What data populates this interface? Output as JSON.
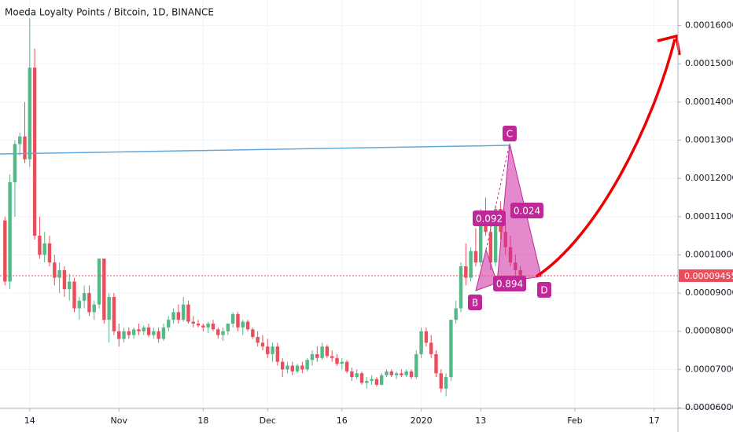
{
  "chart_data": {
    "type": "candlestick",
    "title": "Moeda Loyalty Points / Bitcoin, 1D, BINANCE",
    "up_color": "#53b987",
    "down_color": "#eb4d5c",
    "x": [
      -5,
      -4,
      -3,
      -2,
      -1,
      0,
      1,
      2,
      3,
      4,
      5,
      6,
      7,
      8,
      9,
      10,
      11,
      12,
      13,
      14,
      15,
      16,
      17,
      18,
      19,
      20,
      21,
      22,
      23,
      24,
      25,
      26,
      27,
      28,
      29,
      30,
      31,
      32,
      33,
      34,
      35,
      36,
      37,
      38,
      39,
      40,
      41,
      42,
      43,
      44,
      45,
      46,
      47,
      48,
      49,
      50,
      51,
      52,
      53,
      54,
      55,
      56,
      57,
      58,
      59,
      60,
      61,
      62,
      63,
      64,
      65,
      66,
      67,
      68,
      69,
      70,
      71,
      72,
      73,
      74,
      75,
      76,
      77,
      78,
      79,
      80,
      81,
      82,
      83,
      84,
      85,
      86,
      87,
      88,
      89,
      90,
      91,
      92,
      93,
      94,
      95,
      96,
      97,
      98,
      99
    ],
    "open": [
      0.000109,
      9.3e-05,
      0.000119,
      0.000129,
      0.000131,
      0.000125,
      0.000149,
      0.000105,
      0.0001,
      0.000103,
      9.8e-05,
      9.4e-05,
      9.6e-05,
      9.1e-05,
      9.3e-05,
      8.6e-05,
      8.8e-05,
      9e-05,
      8.5e-05,
      8.7e-05,
      9.9e-05,
      8.3e-05,
      8.9e-05,
      8e-05,
      7.8e-05,
      8e-05,
      7.9e-05,
      8.05e-05,
      8e-05,
      8.1e-05,
      7.9e-05,
      8e-05,
      7.8e-05,
      8.1e-05,
      8.3e-05,
      8.5e-05,
      8.3e-05,
      8.7e-05,
      8.25e-05,
      8.2e-05,
      8.15e-05,
      8.1e-05,
      8.2e-05,
      8.05e-05,
      7.9e-05,
      8e-05,
      8.2e-05,
      8.45e-05,
      8.1e-05,
      8.25e-05,
      8.05e-05,
      7.85e-05,
      7.7e-05,
      7.6e-05,
      7.4e-05,
      7.6e-05,
      7.2e-05,
      7e-05,
      7.1e-05,
      6.95e-05,
      7.1e-05,
      7e-05,
      7.25e-05,
      7.4e-05,
      7.3e-05,
      7.6e-05,
      7.35e-05,
      7.3e-05,
      7.15e-05,
      7.2e-05,
      6.95e-05,
      6.8e-05,
      6.9e-05,
      6.65e-05,
      6.7e-05,
      6.75e-05,
      6.6e-05,
      6.85e-05,
      6.95e-05,
      6.85e-05,
      6.9e-05,
      6.85e-05,
      6.95e-05,
      6.8e-05,
      7.4e-05,
      8e-05,
      7.7e-05,
      7.4e-05,
      6.9e-05,
      6.5e-05,
      6.8e-05,
      8.3e-05,
      8.6e-05,
      9.7e-05,
      9.4e-05,
      0.000101,
      9.8e-05,
      0.00011,
      0.000106,
      9.8e-05,
      0.000112,
      0.000106,
      0.000102,
      9.8e-05,
      9.6e-05
    ],
    "high": [
      0.00011,
      0.000121,
      0.00013,
      0.000132,
      0.00014,
      0.000162,
      0.000154,
      0.00011,
      0.000106,
      0.000105,
      0.0001,
      9.8e-05,
      9.7e-05,
      9.5e-05,
      9.4e-05,
      8.9e-05,
      9.2e-05,
      9.2e-05,
      8.8e-05,
      9.9e-05,
      9.9e-05,
      9e-05,
      9e-05,
      8.2e-05,
      8.1e-05,
      8.1e-05,
      8.1e-05,
      8.2e-05,
      8.15e-05,
      8.2e-05,
      8.1e-05,
      8.1e-05,
      8.2e-05,
      8.4e-05,
      8.6e-05,
      8.7e-05,
      8.9e-05,
      8.8e-05,
      8.4e-05,
      8.3e-05,
      8.2e-05,
      8.25e-05,
      8.3e-05,
      8.1e-05,
      8.1e-05,
      8.2e-05,
      8.5e-05,
      8.5e-05,
      8.3e-05,
      8.3e-05,
      8.1e-05,
      8e-05,
      7.9e-05,
      7.8e-05,
      7.7e-05,
      7.7e-05,
      7.3e-05,
      7.2e-05,
      7.2e-05,
      7.15e-05,
      7.2e-05,
      7.3e-05,
      7.5e-05,
      7.6e-05,
      7.7e-05,
      7.65e-05,
      7.5e-05,
      7.4e-05,
      7.3e-05,
      7.25e-05,
      7.05e-05,
      7e-05,
      6.95e-05,
      6.8e-05,
      6.85e-05,
      6.8e-05,
      6.9e-05,
      7e-05,
      7e-05,
      6.95e-05,
      7e-05,
      7e-05,
      7e-05,
      7.5e-05,
      8.1e-05,
      8.1e-05,
      7.9e-05,
      7.5e-05,
      7e-05,
      6.9e-05,
      8.3e-05,
      8.8e-05,
      9.8e-05,
      0.000103,
      0.000102,
      0.000107,
      0.000112,
      0.000115,
      0.000111,
      0.000113,
      0.000114,
      0.000108,
      0.000105,
      0.0001,
      9.7e-05
    ],
    "low": [
      9.2e-05,
      9.1e-05,
      0.00011,
      0.000126,
      0.000124,
      0.000123,
      0.000104,
      9.9e-05,
      9.8e-05,
      9.7e-05,
      9.2e-05,
      9e-05,
      8.9e-05,
      8.8e-05,
      8.5e-05,
      8.3e-05,
      8.6e-05,
      8.4e-05,
      8.3e-05,
      8.6e-05,
      8.2e-05,
      7.7e-05,
      7.9e-05,
      7.6e-05,
      7.7e-05,
      7.8e-05,
      7.8e-05,
      7.9e-05,
      7.9e-05,
      7.85e-05,
      7.8e-05,
      7.7e-05,
      7.75e-05,
      8e-05,
      8.2e-05,
      8.2e-05,
      8.25e-05,
      8.2e-05,
      8.1e-05,
      8.1e-05,
      8e-05,
      7.95e-05,
      8e-05,
      7.8e-05,
      7.75e-05,
      7.9e-05,
      8.1e-05,
      8e-05,
      7.9e-05,
      8e-05,
      7.8e-05,
      7.6e-05,
      7.5e-05,
      7.3e-05,
      7.2e-05,
      7.1e-05,
      6.8e-05,
      6.9e-05,
      6.85e-05,
      6.9e-05,
      6.9e-05,
      6.95e-05,
      7.1e-05,
      7.2e-05,
      7.25e-05,
      7.3e-05,
      7.2e-05,
      7.1e-05,
      7e-05,
      6.9e-05,
      6.7e-05,
      6.75e-05,
      6.6e-05,
      6.5e-05,
      6.6e-05,
      6.55e-05,
      6.58e-05,
      6.8e-05,
      6.8e-05,
      6.75e-05,
      6.8e-05,
      6.8e-05,
      6.75e-05,
      6.75e-05,
      7.3e-05,
      7.6e-05,
      7.3e-05,
      6.8e-05,
      6.4e-05,
      6.3e-05,
      6.7e-05,
      8.2e-05,
      8.5e-05,
      9.2e-05,
      9.3e-05,
      9.7e-05,
      9.7e-05,
      0.000105,
      9.6e-05,
      9.7e-05,
      0.000104,
      0.0001,
      9.7e-05,
      9.4e-05,
      9.3e-05
    ],
    "close": [
      9.3e-05,
      0.000119,
      0.000129,
      0.000131,
      0.000125,
      0.000149,
      0.000105,
      0.0001,
      0.000103,
      9.8e-05,
      9.4e-05,
      9.6e-05,
      9.1e-05,
      9.3e-05,
      8.6e-05,
      8.8e-05,
      9e-05,
      8.5e-05,
      8.7e-05,
      9.9e-05,
      8.3e-05,
      8.9e-05,
      8e-05,
      7.8e-05,
      8e-05,
      7.9e-05,
      8.05e-05,
      8e-05,
      8.1e-05,
      7.9e-05,
      8e-05,
      7.8e-05,
      8.1e-05,
      8.3e-05,
      8.5e-05,
      8.3e-05,
      8.7e-05,
      8.25e-05,
      8.2e-05,
      8.15e-05,
      8.1e-05,
      8.2e-05,
      8.05e-05,
      7.9e-05,
      8e-05,
      8.2e-05,
      8.45e-05,
      8.1e-05,
      8.25e-05,
      8.05e-05,
      7.85e-05,
      7.7e-05,
      7.6e-05,
      7.4e-05,
      7.6e-05,
      7.2e-05,
      7e-05,
      7.1e-05,
      6.95e-05,
      7.1e-05,
      7e-05,
      7.25e-05,
      7.4e-05,
      7.3e-05,
      7.6e-05,
      7.35e-05,
      7.3e-05,
      7.15e-05,
      7.2e-05,
      6.95e-05,
      6.8e-05,
      6.9e-05,
      6.65e-05,
      6.7e-05,
      6.75e-05,
      6.6e-05,
      6.85e-05,
      6.95e-05,
      6.85e-05,
      6.9e-05,
      6.85e-05,
      6.95e-05,
      6.8e-05,
      7.4e-05,
      8e-05,
      7.7e-05,
      7.4e-05,
      6.9e-05,
      6.5e-05,
      6.8e-05,
      8.3e-05,
      8.6e-05,
      9.7e-05,
      9.4e-05,
      0.000101,
      9.8e-05,
      0.00011,
      0.000106,
      9.8e-05,
      0.000112,
      0.000106,
      0.000102,
      9.8e-05,
      9.6e-05,
      9.455e-05
    ],
    "xlim": [
      -6,
      130.8
    ],
    "xticks": [
      {
        "value": 0,
        "label": "14"
      },
      {
        "value": 18,
        "label": "Nov"
      },
      {
        "value": 35,
        "label": "18"
      },
      {
        "value": 48,
        "label": "Dec"
      },
      {
        "value": 63,
        "label": "16"
      },
      {
        "value": 79,
        "label": "2020"
      },
      {
        "value": 91,
        "label": "13"
      },
      {
        "value": 110,
        "label": "Feb"
      },
      {
        "value": 126,
        "label": "17"
      }
    ],
    "ylim": [
      5.98e-05,
      0.0001667
    ],
    "yticks": [
      {
        "value": 6e-05,
        "label": "0.00006000"
      },
      {
        "value": 7e-05,
        "label": "0.00007000"
      },
      {
        "value": 8e-05,
        "label": "0.00008000"
      },
      {
        "value": 9e-05,
        "label": "0.00009000"
      },
      {
        "value": 0.0001,
        "label": "0.00010000"
      },
      {
        "value": 0.00011,
        "label": "0.00011000"
      },
      {
        "value": 0.00012,
        "label": "0.00012000"
      },
      {
        "value": 0.00013,
        "label": "0.00013000"
      },
      {
        "value": 0.00014,
        "label": "0.00014000"
      },
      {
        "value": 0.00015,
        "label": "0.00015000"
      },
      {
        "value": 0.00016,
        "label": "0.00016000"
      }
    ],
    "grid": true,
    "last_price": 9.455e-05,
    "pattern_points": [
      "B",
      "C",
      "D"
    ],
    "pattern_ratios": [
      "0.092",
      "0.024",
      "0.894"
    ]
  }
}
